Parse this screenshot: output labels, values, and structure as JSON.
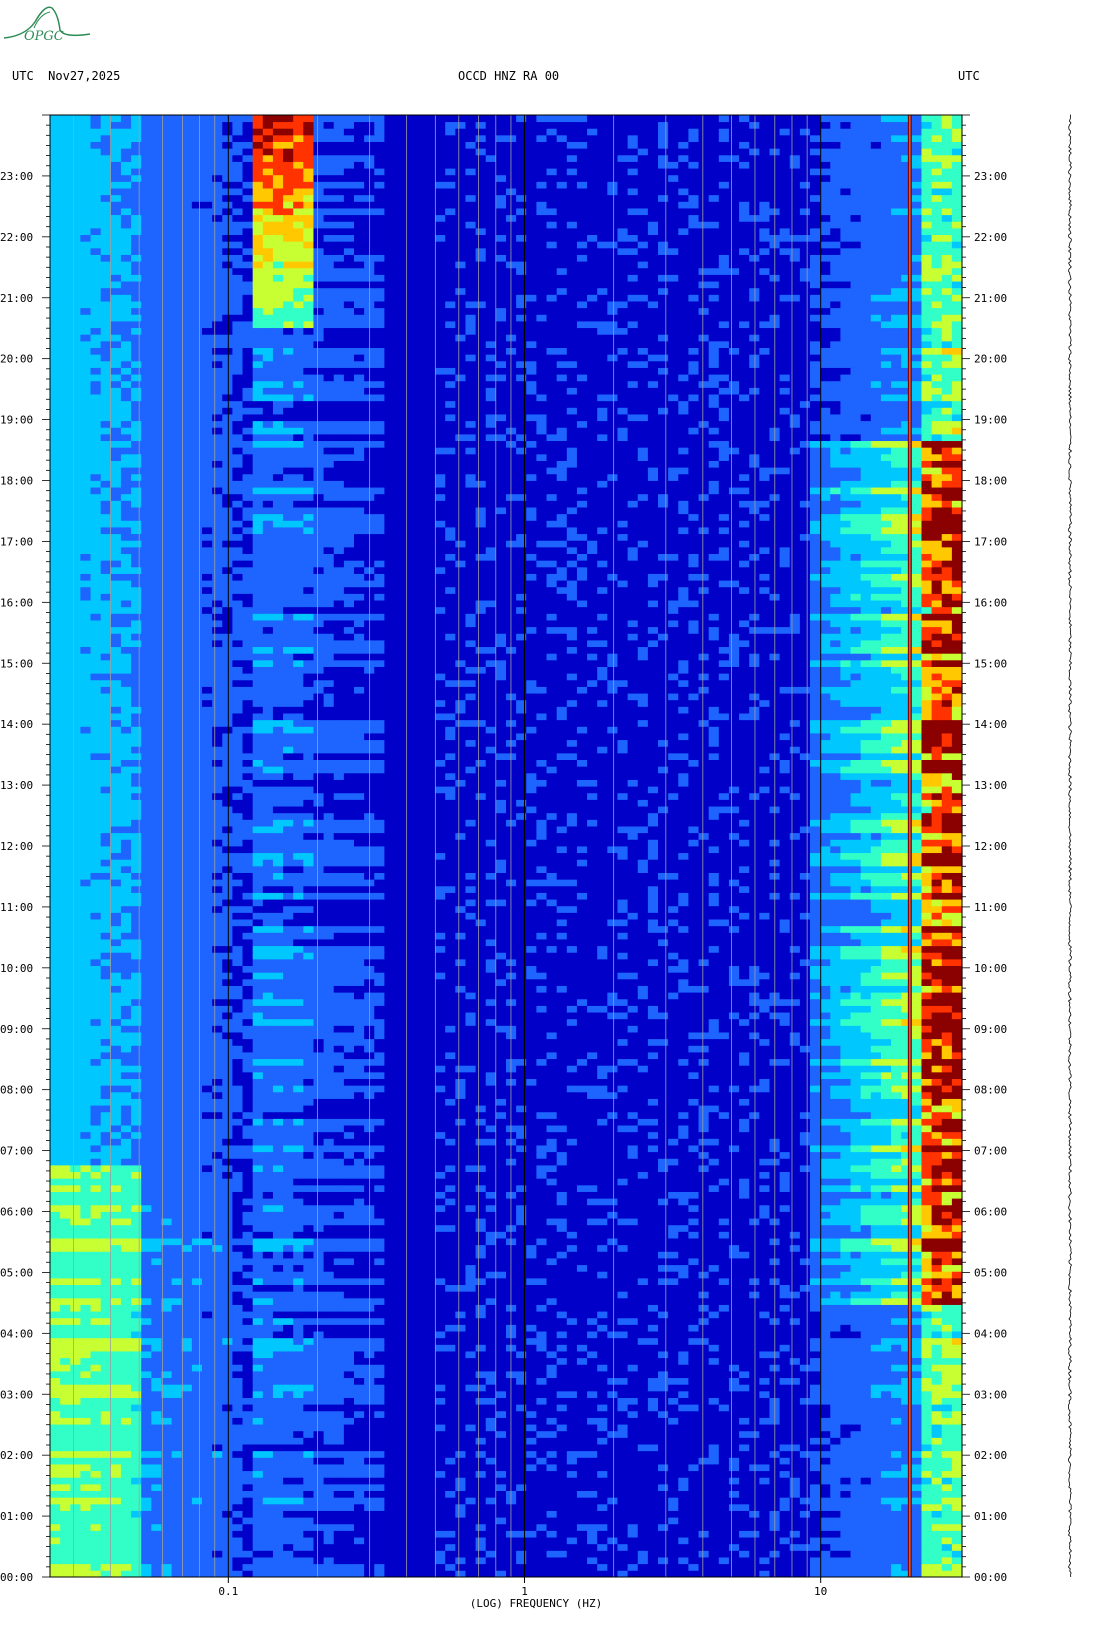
{
  "header": {
    "left_label": "UTC",
    "date": "Nov27,2025",
    "station": "OCCD HNZ RA 00",
    "right_label": "UTC"
  },
  "logo": {
    "text": "OPGC",
    "color": "#2e8b57"
  },
  "chart_data": {
    "type": "heatmap",
    "xlabel": "(LOG) FREQUENCY (HZ)",
    "x_scale": "log",
    "xlim": [
      0.025,
      30
    ],
    "x_ticks": [
      {
        "value": 0.1,
        "label": "0.1"
      },
      {
        "value": 1,
        "label": "1"
      },
      {
        "value": 10,
        "label": "10"
      }
    ],
    "ylim_hours": [
      0,
      24
    ],
    "y_ticks": [
      "00:00",
      "01:00",
      "02:00",
      "03:00",
      "04:00",
      "05:00",
      "06:00",
      "07:00",
      "08:00",
      "09:00",
      "10:00",
      "11:00",
      "12:00",
      "13:00",
      "14:00",
      "15:00",
      "16:00",
      "17:00",
      "18:00",
      "19:00",
      "20:00",
      "21:00",
      "22:00",
      "23:00"
    ],
    "colormap": [
      "#000080",
      "#0000c8",
      "#1e64ff",
      "#00c8ff",
      "#32ffc8",
      "#c8ff32",
      "#ffc800",
      "#ff3200",
      "#8b0000"
    ],
    "features": [
      {
        "name": "microseism",
        "freq_range_hz": [
          0.13,
          0.19
        ],
        "time_range_h": [
          20.5,
          24
        ],
        "level": "high"
      },
      {
        "name": "long-period",
        "freq_range_hz": [
          0.025,
          0.05
        ],
        "time_range_h": [
          0,
          6.8
        ],
        "level": "medium"
      },
      {
        "name": "cultural noise",
        "freq_range_hz": [
          10,
          30
        ],
        "time_range_h": [
          4.5,
          18.7
        ],
        "level": "high"
      },
      {
        "name": "constant line",
        "freq_hz": 20,
        "time_range_h": [
          0,
          24
        ],
        "level": "max"
      }
    ]
  }
}
